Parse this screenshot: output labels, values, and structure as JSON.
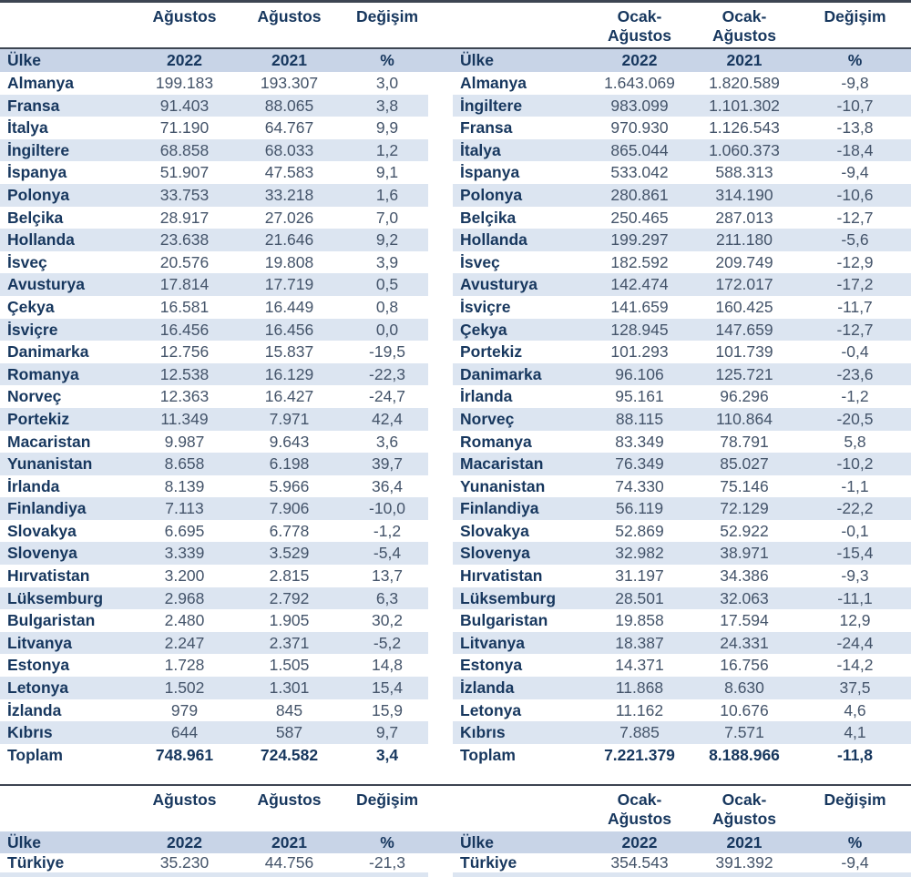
{
  "page": {
    "accent_navy": "#17375E",
    "number_color": "#44546A",
    "stripe_color": "#DCE5F1",
    "band_color": "#C8D4E7",
    "rule_color": "#3D4552"
  },
  "europe_august": {
    "period_label": "Ağustos",
    "period_label_2": "Ağustos",
    "change_label": "Değişim",
    "country_label": "Ülke",
    "year_current": "2022",
    "year_previous": "2021",
    "percent_label": "%",
    "rows": [
      {
        "country": "Almanya",
        "current": "199.183",
        "previous": "193.307",
        "change": "3,0"
      },
      {
        "country": "Fransa",
        "current": "91.403",
        "previous": "88.065",
        "change": "3,8"
      },
      {
        "country": "İtalya",
        "current": "71.190",
        "previous": "64.767",
        "change": "9,9"
      },
      {
        "country": "İngiltere",
        "current": "68.858",
        "previous": "68.033",
        "change": "1,2"
      },
      {
        "country": "İspanya",
        "current": "51.907",
        "previous": "47.583",
        "change": "9,1"
      },
      {
        "country": "Polonya",
        "current": "33.753",
        "previous": "33.218",
        "change": "1,6"
      },
      {
        "country": "Belçika",
        "current": "28.917",
        "previous": "27.026",
        "change": "7,0"
      },
      {
        "country": "Hollanda",
        "current": "23.638",
        "previous": "21.646",
        "change": "9,2"
      },
      {
        "country": "İsveç",
        "current": "20.576",
        "previous": "19.808",
        "change": "3,9"
      },
      {
        "country": "Avusturya",
        "current": "17.814",
        "previous": "17.719",
        "change": "0,5"
      },
      {
        "country": "Çekya",
        "current": "16.581",
        "previous": "16.449",
        "change": "0,8"
      },
      {
        "country": "İsviçre",
        "current": "16.456",
        "previous": "16.456",
        "change": "0,0"
      },
      {
        "country": "Danimarka",
        "current": "12.756",
        "previous": "15.837",
        "change": "-19,5"
      },
      {
        "country": "Romanya",
        "current": "12.538",
        "previous": "16.129",
        "change": "-22,3"
      },
      {
        "country": "Norveç",
        "current": "12.363",
        "previous": "16.427",
        "change": "-24,7"
      },
      {
        "country": "Portekiz",
        "current": "11.349",
        "previous": "7.971",
        "change": "42,4"
      },
      {
        "country": "Macaristan",
        "current": "9.987",
        "previous": "9.643",
        "change": "3,6"
      },
      {
        "country": "Yunanistan",
        "current": "8.658",
        "previous": "6.198",
        "change": "39,7"
      },
      {
        "country": "İrlanda",
        "current": "8.139",
        "previous": "5.966",
        "change": "36,4"
      },
      {
        "country": "Finlandiya",
        "current": "7.113",
        "previous": "7.906",
        "change": "-10,0"
      },
      {
        "country": "Slovakya",
        "current": "6.695",
        "previous": "6.778",
        "change": "-1,2"
      },
      {
        "country": "Slovenya",
        "current": "3.339",
        "previous": "3.529",
        "change": "-5,4"
      },
      {
        "country": "Hırvatistan",
        "current": "3.200",
        "previous": "2.815",
        "change": "13,7"
      },
      {
        "country": "Lüksemburg",
        "current": "2.968",
        "previous": "2.792",
        "change": "6,3"
      },
      {
        "country": "Bulgaristan",
        "current": "2.480",
        "previous": "1.905",
        "change": "30,2"
      },
      {
        "country": "Litvanya",
        "current": "2.247",
        "previous": "2.371",
        "change": "-5,2"
      },
      {
        "country": "Estonya",
        "current": "1.728",
        "previous": "1.505",
        "change": "14,8"
      },
      {
        "country": "Letonya",
        "current": "1.502",
        "previous": "1.301",
        "change": "15,4"
      },
      {
        "country": "İzlanda",
        "current": "979",
        "previous": "845",
        "change": "15,9"
      },
      {
        "country": "Kıbrıs",
        "current": "644",
        "previous": "587",
        "change": "9,7"
      }
    ],
    "total": {
      "country": "Toplam",
      "current": "748.961",
      "previous": "724.582",
      "change": "3,4"
    }
  },
  "europe_ytd": {
    "period_label": "Ocak-Ağustos",
    "period_label_2": "Ocak-Ağustos",
    "change_label": "Değişim",
    "country_label": "Ülke",
    "year_current": "2022",
    "year_previous": "2021",
    "percent_label": "%",
    "rows": [
      {
        "country": "Almanya",
        "current": "1.643.069",
        "previous": "1.820.589",
        "change": "-9,8"
      },
      {
        "country": "İngiltere",
        "current": "983.099",
        "previous": "1.101.302",
        "change": "-10,7"
      },
      {
        "country": "Fransa",
        "current": "970.930",
        "previous": "1.126.543",
        "change": "-13,8"
      },
      {
        "country": "İtalya",
        "current": "865.044",
        "previous": "1.060.373",
        "change": "-18,4"
      },
      {
        "country": "İspanya",
        "current": "533.042",
        "previous": "588.313",
        "change": "-9,4"
      },
      {
        "country": "Polonya",
        "current": "280.861",
        "previous": "314.190",
        "change": "-10,6"
      },
      {
        "country": "Belçika",
        "current": "250.465",
        "previous": "287.013",
        "change": "-12,7"
      },
      {
        "country": "Hollanda",
        "current": "199.297",
        "previous": "211.180",
        "change": "-5,6"
      },
      {
        "country": "İsveç",
        "current": "182.592",
        "previous": "209.749",
        "change": "-12,9"
      },
      {
        "country": "Avusturya",
        "current": "142.474",
        "previous": "172.017",
        "change": "-17,2"
      },
      {
        "country": "İsviçre",
        "current": "141.659",
        "previous": "160.425",
        "change": "-11,7"
      },
      {
        "country": "Çekya",
        "current": "128.945",
        "previous": "147.659",
        "change": "-12,7"
      },
      {
        "country": "Portekiz",
        "current": "101.293",
        "previous": "101.739",
        "change": "-0,4"
      },
      {
        "country": "Danimarka",
        "current": "96.106",
        "previous": "125.721",
        "change": "-23,6"
      },
      {
        "country": "İrlanda",
        "current": "95.161",
        "previous": "96.296",
        "change": "-1,2"
      },
      {
        "country": "Norveç",
        "current": "88.115",
        "previous": "110.864",
        "change": "-20,5"
      },
      {
        "country": "Romanya",
        "current": "83.349",
        "previous": "78.791",
        "change": "5,8"
      },
      {
        "country": "Macaristan",
        "current": "76.349",
        "previous": "85.027",
        "change": "-10,2"
      },
      {
        "country": "Yunanistan",
        "current": "74.330",
        "previous": "75.146",
        "change": "-1,1"
      },
      {
        "country": "Finlandiya",
        "current": "56.119",
        "previous": "72.129",
        "change": "-22,2"
      },
      {
        "country": "Slovakya",
        "current": "52.869",
        "previous": "52.922",
        "change": "-0,1"
      },
      {
        "country": "Slovenya",
        "current": "32.982",
        "previous": "38.971",
        "change": "-15,4"
      },
      {
        "country": "Hırvatistan",
        "current": "31.197",
        "previous": "34.386",
        "change": "-9,3"
      },
      {
        "country": "Lüksemburg",
        "current": "28.501",
        "previous": "32.063",
        "change": "-11,1"
      },
      {
        "country": "Bulgaristan",
        "current": "19.858",
        "previous": "17.594",
        "change": "12,9"
      },
      {
        "country": "Litvanya",
        "current": "18.387",
        "previous": "24.331",
        "change": "-24,4"
      },
      {
        "country": "Estonya",
        "current": "14.371",
        "previous": "16.756",
        "change": "-14,2"
      },
      {
        "country": "İzlanda",
        "current": "11.868",
        "previous": "8.630",
        "change": "37,5"
      },
      {
        "country": "Letonya",
        "current": "11.162",
        "previous": "10.676",
        "change": "4,6"
      },
      {
        "country": "Kıbrıs",
        "current": "7.885",
        "previous": "7.571",
        "change": "4,1"
      }
    ],
    "total": {
      "country": "Toplam",
      "current": "7.221.379",
      "previous": "8.188.966",
      "change": "-11,8"
    }
  },
  "turkey_august": {
    "period_label": "Ağustos",
    "period_label_2": "Ağustos",
    "change_label": "Değişim",
    "country_label": "Ülke",
    "year_current": "2022",
    "year_previous": "2021",
    "percent_label": "%",
    "rows": [
      {
        "country": "Türkiye",
        "current": "35.230",
        "previous": "44.756",
        "change": "-21,3"
      }
    ]
  },
  "turkey_ytd": {
    "period_label": "Ocak-Ağustos",
    "period_label_2": "Ocak-Ağustos",
    "change_label": "Değişim",
    "country_label": "Ülke",
    "year_current": "2022",
    "year_previous": "2021",
    "percent_label": "%",
    "rows": [
      {
        "country": "Türkiye",
        "current": "354.543",
        "previous": "391.392",
        "change": "-9,4"
      }
    ]
  }
}
